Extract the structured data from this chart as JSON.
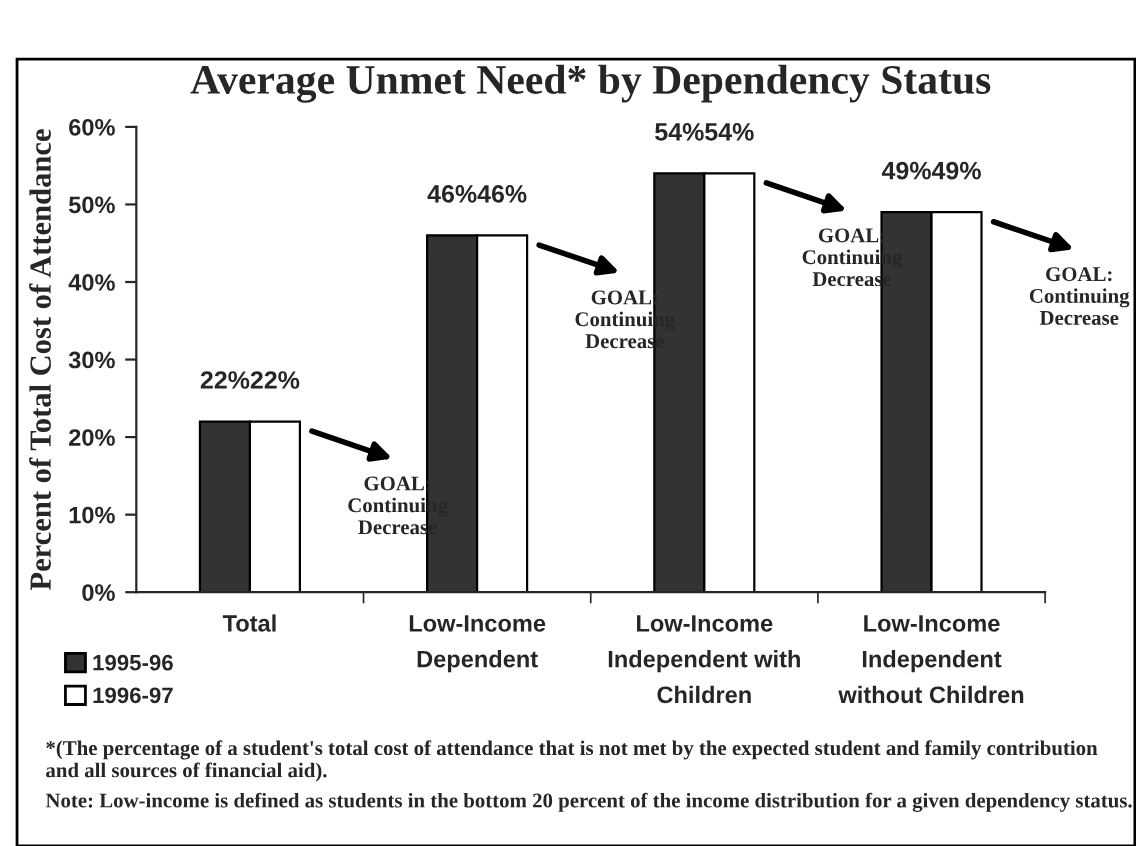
{
  "chart_data": {
    "type": "bar",
    "title": "Average Unmet Need* by Dependency Status",
    "ylabel": "Percent of Total Cost of Attendance",
    "categories": [
      "Total",
      "Low-Income\nDependent",
      "Low-Income\nIndependent with\nChildren",
      "Low-Income\nIndependent\nwithout Children"
    ],
    "series": [
      {
        "name": "1995-96",
        "color": "#333333",
        "values": [
          22,
          46,
          54,
          49
        ],
        "value_labels": [
          "22%",
          "46%",
          "54%",
          "49%"
        ]
      },
      {
        "name": "1996-97",
        "color": "#ffffff",
        "values": [
          22,
          46,
          54,
          49
        ],
        "value_labels": [
          "22%",
          "46%",
          "54%",
          "49%"
        ]
      }
    ],
    "ylim": [
      0,
      60
    ],
    "yticks": [
      {
        "value": 0,
        "label": "0%"
      },
      {
        "value": 10,
        "label": "10%"
      },
      {
        "value": 20,
        "label": "20%"
      },
      {
        "value": 30,
        "label": "30%"
      },
      {
        "value": 40,
        "label": "40%"
      },
      {
        "value": 50,
        "label": "50%"
      },
      {
        "value": 60,
        "label": "60%"
      }
    ],
    "grid": false,
    "legend": "bottom left",
    "annotations": [
      "GOAL:\nContinuing\nDecrease",
      "GOAL:\nContinuing\nDecrease",
      "GOAL:\nContinuing\nDecrease",
      "GOAL:\nContinuing\nDecrease",
      "*(The percentage of a student's total cost of attendance that is not met by the expected student and family contribution and all sources of financial aid).",
      "Note: Low-income is defined as students in the bottom 20 percent of the income distribution for a given dependency status."
    ]
  }
}
